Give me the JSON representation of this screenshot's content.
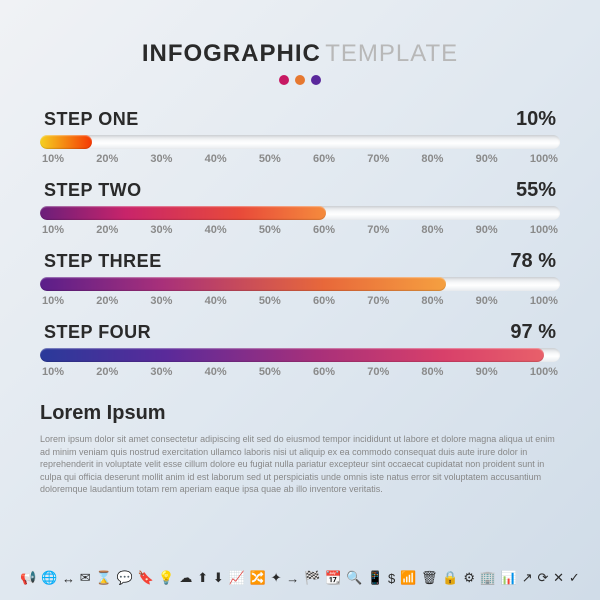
{
  "title": {
    "main": "INFOGRAPHIC",
    "sub": "TEMPLATE"
  },
  "dots": [
    "#c71862",
    "#e67830",
    "#5a289c"
  ],
  "scale_labels": [
    "10%",
    "20%",
    "30%",
    "40%",
    "50%",
    "60%",
    "70%",
    "80%",
    "90%",
    "100%"
  ],
  "steps": [
    {
      "label": "STEP ONE",
      "pct_text": "10%",
      "pct_value": 10,
      "gradient": "linear-gradient(90deg, #f5d020 0%, #f53803 100%)"
    },
    {
      "label": "STEP TWO",
      "pct_text": "55%",
      "pct_value": 55,
      "gradient": "linear-gradient(90deg, #6b1e7a 0%, #c8246a 30%, #e84a3a 70%, #f58b3c 100%)"
    },
    {
      "label": "STEP THREE",
      "pct_text": "78 %",
      "pct_value": 78,
      "gradient": "linear-gradient(90deg, #5a1e8a 0%, #a8307a 30%, #e8683a 70%, #f5a040 100%)"
    },
    {
      "label": "STEP FOUR",
      "pct_text": "97 %",
      "pct_value": 97,
      "gradient": "linear-gradient(90deg, #2a3a9a 0%, #5a2a9a 25%, #a8307a 55%, #d8406a 80%, #e8606a 100%)"
    }
  ],
  "lorem": {
    "title": "Lorem Ipsum",
    "body": "Lorem ipsum dolor sit amet consectetur adipiscing elit sed do eiusmod tempor incididunt ut labore et dolore magna aliqua ut enim ad minim veniam quis nostrud exercitation ullamco laboris nisi ut aliquip ex ea commodo consequat duis aute irure dolor in reprehenderit in voluptate velit esse cillum dolore eu fugiat nulla pariatur excepteur sint occaecat cupidatat non proident sunt in culpa qui officia deserunt mollit anim id est laborum sed ut perspiciatis unde omnis iste natus error sit voluptatem accusantium doloremque laudantium totam rem aperiam eaque ipsa quae ab illo inventore veritatis."
  },
  "icons": [
    "📢",
    "🌐",
    "↔",
    "✉",
    "⌛",
    "💬",
    "🔖",
    "💡",
    "☁",
    "⬆",
    "⬇",
    "📈",
    "🔀",
    "✦",
    "→",
    "🏁",
    "📆",
    "🔍",
    "📱",
    "$",
    "📶",
    "🗑",
    "🔒",
    "⚙",
    "🏢",
    "📊",
    "↗",
    "⟳",
    "✕",
    "✓"
  ]
}
